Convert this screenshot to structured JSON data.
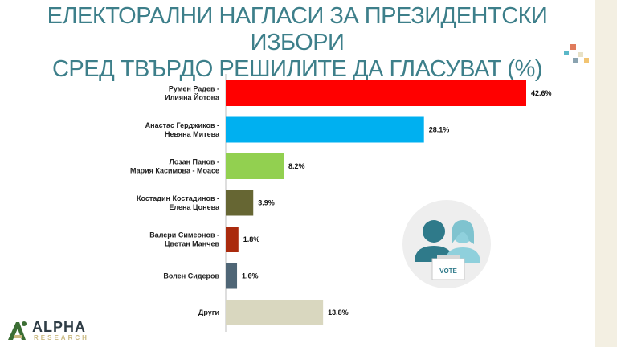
{
  "header": {
    "title_line1": "ЕЛЕКТОРАЛНИ НАГЛАСИ ЗА ПРЕЗИДЕНТСКИ ИЗБОРИ",
    "title_line2": "СРЕД ТВЪРДО РЕШИЛИТЕ ДА ГЛАСУВАТ (%)"
  },
  "logo": {
    "name": "ALPHA",
    "sub": "RESEARCH"
  },
  "illustration": {
    "ballot_text": "VOTE"
  },
  "chart_data": {
    "type": "bar",
    "orientation": "horizontal",
    "categories": [
      [
        "Румен Радев -",
        "Илияна Йотова"
      ],
      [
        "Анастас Герджиков -",
        "Невяна Митева"
      ],
      [
        "Лозан Панов -",
        "Мария Касимова - Моасе"
      ],
      [
        "Костадин Костадинов -",
        "Елена Цонева"
      ],
      [
        "Валери Симеонов -",
        "Цветан Манчев"
      ],
      [
        "Волен Сидеров"
      ],
      [
        "Други"
      ]
    ],
    "values": [
      42.6,
      28.1,
      8.2,
      3.9,
      1.8,
      1.6,
      13.8
    ],
    "value_labels": [
      "42.6%",
      "28.1%",
      "8.2%",
      "3.9%",
      "1.8%",
      "1.6%",
      "13.8%"
    ],
    "colors": [
      "#ff0000",
      "#00b0f0",
      "#92d050",
      "#666633",
      "#aa2a0d",
      "#4f6676",
      "#d9d7bf"
    ],
    "xlim": [
      0,
      45
    ],
    "grid": false,
    "legend": "none"
  }
}
